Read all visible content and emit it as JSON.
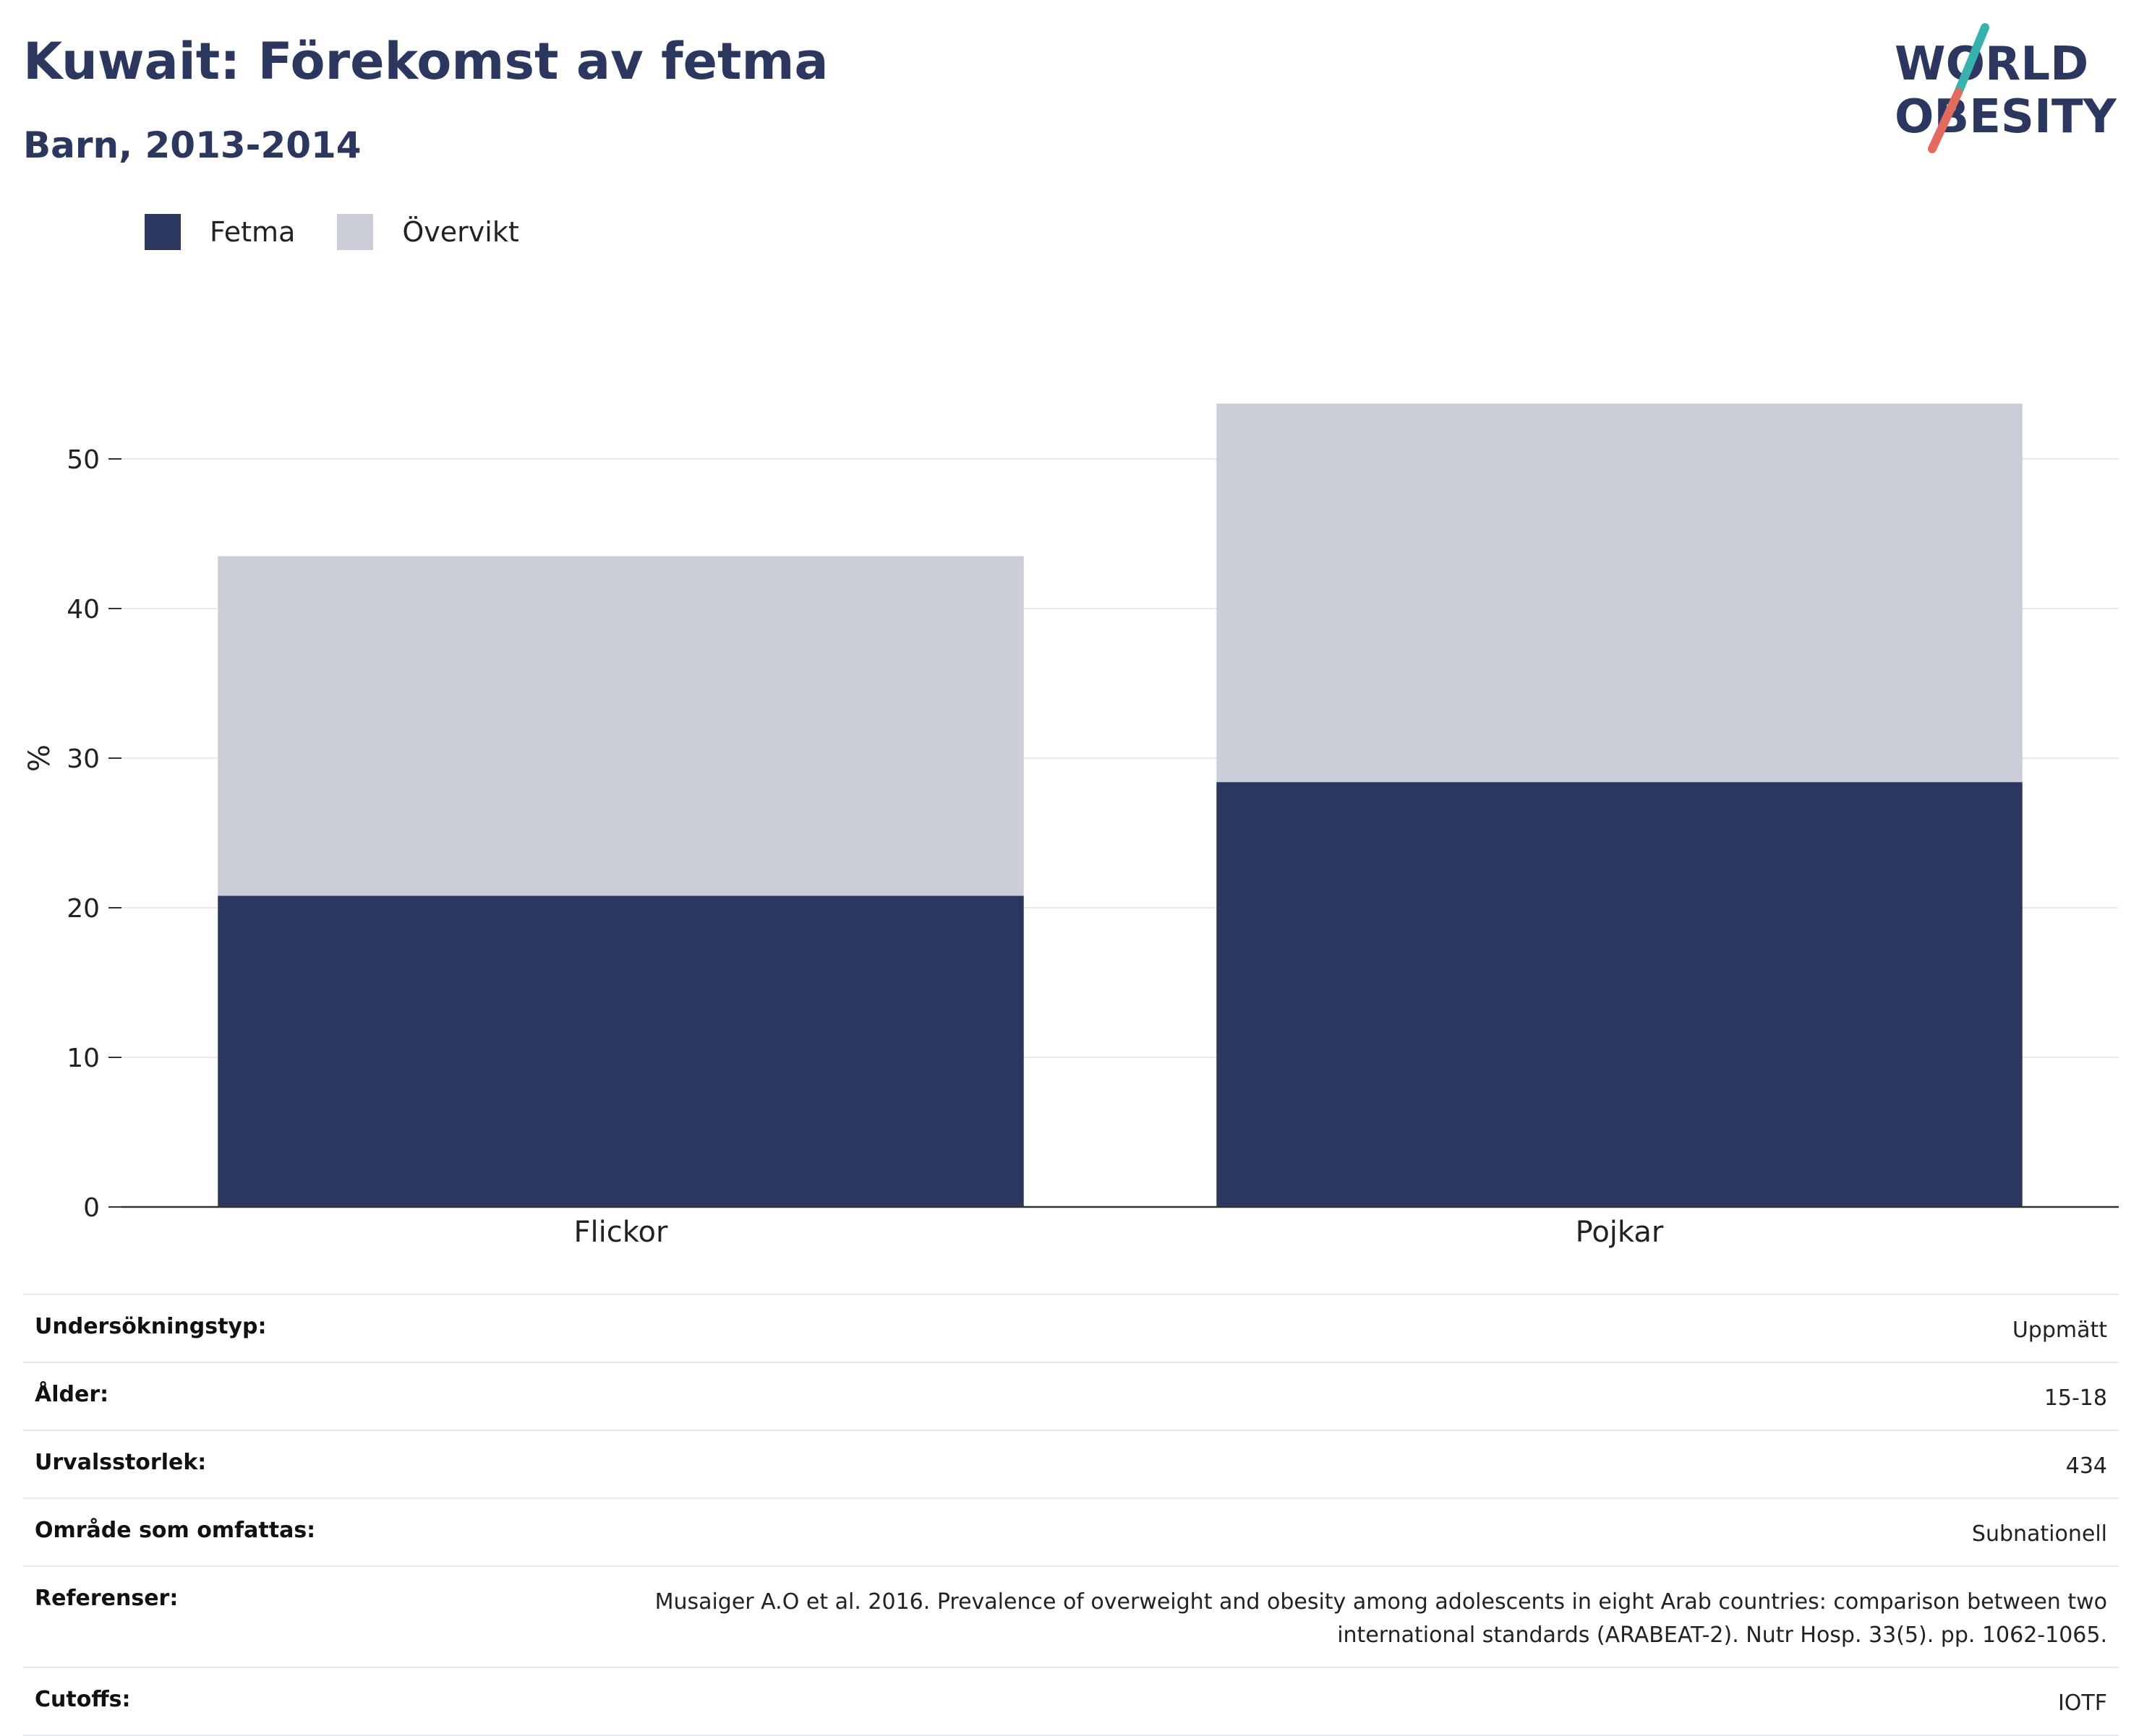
{
  "header": {
    "title": "Kuwait: Förekomst av fetma",
    "subtitle": "Barn, 2013-2014"
  },
  "logo": {
    "line1": "WORLD",
    "line2": "OBESITY",
    "slash_colors": [
      "#38b2ac",
      "#e36b5d"
    ]
  },
  "legend": {
    "items": [
      {
        "label": "Fetma",
        "color": "#2b375f"
      },
      {
        "label": "Övervikt",
        "color": "#cbcdd8"
      }
    ]
  },
  "chart_data": {
    "type": "bar",
    "stacked": true,
    "categories": [
      "Flickor",
      "Pojkar"
    ],
    "series": [
      {
        "name": "Fetma",
        "color": "#2b375f",
        "values": [
          20.8,
          28.4
        ]
      },
      {
        "name": "Övervikt",
        "color": "#cbcdd8",
        "values": [
          22.7,
          25.3
        ]
      }
    ],
    "ylabel": "%",
    "ylim": [
      0,
      60
    ],
    "yticks": [
      0,
      10,
      20,
      30,
      40,
      50
    ],
    "grid": true,
    "legend_position": "top-left"
  },
  "metadata": {
    "rows": [
      {
        "label": "Undersökningstyp:",
        "value": "Uppmätt"
      },
      {
        "label": "Ålder:",
        "value": "15-18"
      },
      {
        "label": "Urvalsstorlek:",
        "value": "434"
      },
      {
        "label": "Område som omfattas:",
        "value": "Subnationell"
      },
      {
        "label": "Referenser:",
        "value": "Musaiger A.O et al. 2016. Prevalence of overweight and obesity among adolescents in eight Arab countries: comparison between two international standards (ARABEAT-2). Nutr Hosp. 33(5). pp. 1062-1065."
      },
      {
        "label": "Cutoffs:",
        "value": "IOTF"
      }
    ]
  }
}
